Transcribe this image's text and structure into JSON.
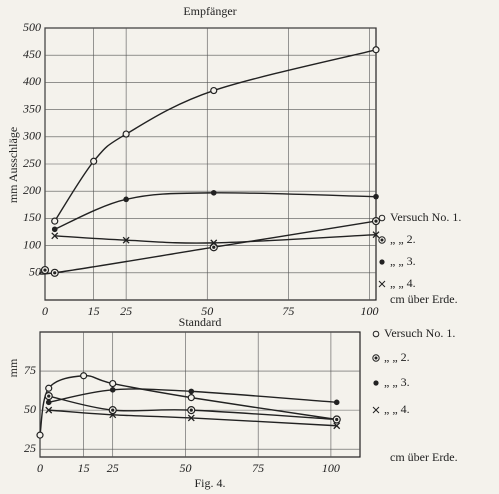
{
  "chart_data": [
    {
      "type": "line",
      "title": "Empfänger",
      "y_label": "mm Ausschläge",
      "x_label": "cm über Erde.",
      "xlim": [
        0,
        102
      ],
      "ylim": [
        0,
        500
      ],
      "xticks": [
        0,
        15,
        25,
        50,
        75,
        100
      ],
      "yticks": [
        50,
        100,
        150,
        200,
        250,
        300,
        350,
        400,
        450,
        500
      ],
      "grid": true,
      "series": [
        {
          "name": "Versuch No. 1.",
          "marker": "circle",
          "color": "#222222",
          "x": [
            3,
            15,
            25,
            52,
            102
          ],
          "values": [
            145,
            255,
            305,
            385,
            460
          ]
        },
        {
          "name": "„ „ 2.",
          "marker": "ringed",
          "color": "#222222",
          "x": [
            0,
            3,
            52,
            102
          ],
          "values": [
            55,
            50,
            97,
            145
          ]
        },
        {
          "name": "„ „ 3.",
          "marker": "dot",
          "color": "#222222",
          "x": [
            3,
            25,
            52,
            102
          ],
          "values": [
            130,
            185,
            197,
            190
          ]
        },
        {
          "name": "„ „ 4.",
          "marker": "x",
          "color": "#222222",
          "x": [
            3,
            25,
            52,
            102
          ],
          "values": [
            118,
            110,
            105,
            120
          ]
        }
      ]
    },
    {
      "type": "line",
      "title": "Standard",
      "y_label": "mm",
      "x_label": "cm über Erde.",
      "xlim": [
        0,
        110
      ],
      "ylim": [
        20,
        100
      ],
      "xticks": [
        0,
        15,
        25,
        50,
        75,
        100
      ],
      "yticks": [
        25,
        50,
        75
      ],
      "grid": true,
      "series": [
        {
          "name": "Versuch No. 1.",
          "marker": "circle",
          "color": "#222222",
          "x": [
            0,
            3,
            15,
            25,
            52,
            102
          ],
          "values": [
            34,
            64,
            72,
            67,
            58,
            44
          ]
        },
        {
          "name": "„ „ 2.",
          "marker": "ringed",
          "color": "#222222",
          "x": [
            3,
            25,
            52,
            102
          ],
          "values": [
            59,
            50,
            50,
            44
          ]
        },
        {
          "name": "„ „ 3.",
          "marker": "dot",
          "color": "#222222",
          "x": [
            3,
            25,
            52,
            102
          ],
          "values": [
            55,
            63,
            62,
            55
          ]
        },
        {
          "name": "„ „ 4.",
          "marker": "x",
          "color": "#222222",
          "x": [
            3,
            25,
            52,
            102
          ],
          "values": [
            50,
            47,
            45,
            40
          ]
        }
      ]
    }
  ],
  "caption": "Fig. 4."
}
